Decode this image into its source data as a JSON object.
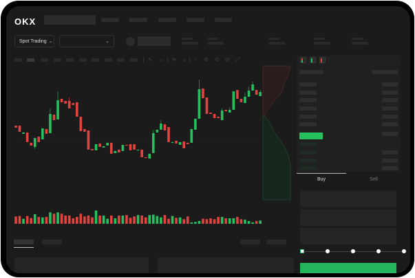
{
  "header": {
    "logo": "OKX"
  },
  "market_selector": {
    "label": "Spot Trading"
  },
  "trade_tabs": {
    "buy": "Buy",
    "sell": "Sell"
  },
  "colors": {
    "up": "#26c05f",
    "down": "#e0443f",
    "background": "#1b1b1b",
    "buy_button": "#24b55c"
  },
  "order_book": {
    "view_icons": [
      "book-both-icon",
      "book-bids-icon",
      "book-asks-icon"
    ]
  },
  "leverage_slider": {
    "value_fraction": 0
  },
  "candles": [
    [
      68,
      68,
      65,
      65
    ],
    [
      68,
      68,
      59,
      59
    ],
    [
      56,
      58,
      56,
      58
    ],
    [
      58,
      58,
      44,
      44
    ],
    [
      43,
      43,
      39,
      39
    ],
    [
      37,
      50,
      34,
      50
    ],
    [
      52,
      52,
      44,
      44
    ],
    [
      48,
      64,
      48,
      64
    ],
    [
      63,
      63,
      56,
      56
    ],
    [
      57,
      93,
      57,
      85
    ],
    [
      84,
      84,
      76,
      76
    ],
    [
      77,
      118,
      77,
      105
    ],
    [
      107,
      107,
      102,
      102
    ],
    [
      104,
      104,
      100,
      100
    ],
    [
      104,
      109,
      93,
      93
    ],
    [
      101,
      101,
      98,
      98
    ],
    [
      102,
      102,
      81,
      81
    ],
    [
      81,
      81,
      60,
      60
    ],
    [
      63,
      63,
      59,
      59
    ],
    [
      61,
      61,
      33,
      33
    ],
    [
      34,
      34,
      32,
      32
    ],
    [
      32,
      41,
      32,
      41
    ],
    [
      42,
      42,
      37,
      37
    ],
    [
      36,
      38,
      36,
      38
    ],
    [
      39,
      43,
      39,
      43
    ],
    [
      43,
      43,
      27,
      27
    ],
    [
      28,
      31,
      28,
      31
    ],
    [
      33,
      33,
      29,
      29
    ],
    [
      31,
      40,
      31,
      40
    ],
    [
      40,
      40,
      39,
      39
    ],
    [
      41,
      41,
      32,
      32
    ],
    [
      41,
      41,
      33,
      33
    ],
    [
      33,
      33,
      33,
      33
    ],
    [
      33,
      33,
      22,
      22
    ],
    [
      22,
      22,
      21,
      21
    ],
    [
      20,
      27,
      20,
      27
    ],
    [
      28,
      62,
      28,
      57
    ],
    [
      58,
      62,
      58,
      62
    ],
    [
      62,
      76,
      62,
      71
    ],
    [
      70,
      70,
      61,
      61
    ],
    [
      66,
      66,
      44,
      44
    ],
    [
      43,
      45,
      43,
      44
    ],
    [
      46,
      46,
      42,
      42
    ],
    [
      40,
      44,
      40,
      44
    ],
    [
      45,
      45,
      35,
      35
    ],
    [
      43,
      43,
      41,
      41
    ],
    [
      43,
      63,
      43,
      63
    ],
    [
      62,
      78,
      62,
      78
    ],
    [
      78,
      135,
      78,
      121
    ],
    [
      122,
      122,
      108,
      108
    ],
    [
      109,
      109,
      85,
      85
    ],
    [
      87,
      87,
      85,
      85
    ],
    [
      85,
      85,
      79,
      79
    ],
    [
      81,
      81,
      79,
      79
    ],
    [
      76,
      93,
      76,
      90
    ],
    [
      91,
      91,
      89,
      89
    ],
    [
      87,
      95,
      87,
      91
    ],
    [
      91,
      118,
      91,
      118
    ],
    [
      120,
      120,
      107,
      107
    ],
    [
      107,
      107,
      102,
      102
    ],
    [
      101,
      116,
      101,
      110
    ],
    [
      110,
      125,
      110,
      119
    ],
    [
      119,
      132,
      119,
      128
    ],
    [
      120,
      120,
      113,
      113
    ],
    [
      111,
      120,
      111,
      117
    ]
  ],
  "volumes": [
    32,
    34,
    22,
    34,
    25,
    42,
    30,
    28,
    30,
    50,
    44,
    50,
    44,
    36,
    36,
    24,
    30,
    44,
    32,
    36,
    28,
    58,
    36,
    36,
    22,
    36,
    24,
    36,
    36,
    38,
    26,
    32,
    38,
    36,
    28,
    38,
    40,
    34,
    28,
    38,
    22,
    34,
    26,
    28,
    20,
    32,
    6,
    8,
    12,
    22,
    20,
    24,
    20,
    30,
    30,
    24,
    24,
    24,
    30,
    20,
    18,
    12,
    6,
    12,
    14
  ]
}
